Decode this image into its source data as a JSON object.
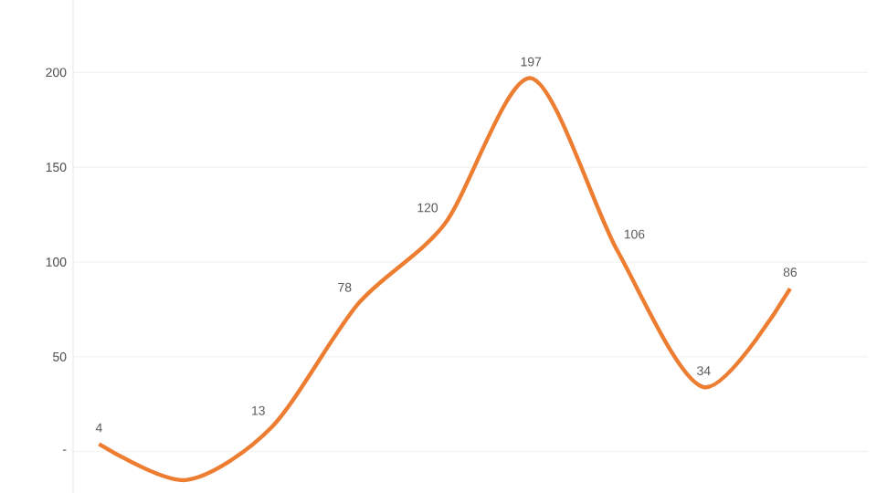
{
  "chart_data": {
    "type": "line",
    "categories": [
      null,
      null,
      null,
      null,
      null,
      null,
      null,
      null,
      null
    ],
    "series": [
      {
        "color": "#ed7d31",
        "values": [
          4,
          -15,
          13,
          78,
          120,
          197,
          106,
          34,
          86
        ],
        "value_labels": [
          "4",
          null,
          "13",
          "78",
          "120",
          "197",
          "106",
          "34",
          "86"
        ]
      }
    ],
    "ylim": [
      -22,
      238
    ],
    "yticks": [
      {
        "value": 0,
        "label": "-"
      },
      50,
      100,
      150,
      200
    ],
    "grid": "y",
    "marker": "none",
    "line_style": "solid"
  }
}
